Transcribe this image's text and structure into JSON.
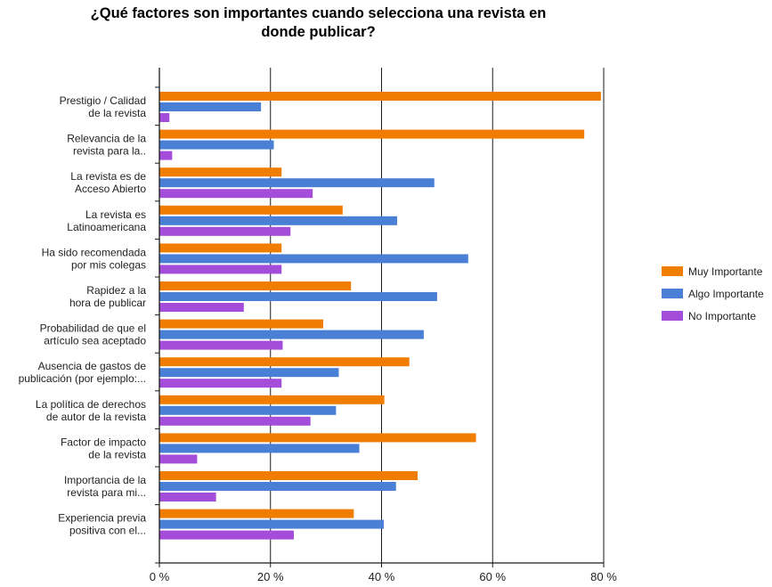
{
  "chart_data": {
    "type": "bar",
    "orientation": "horizontal",
    "title_lines": [
      "¿Qué factores son importantes cuando selecciona una revista en",
      "donde publicar?"
    ],
    "categories": [
      [
        "Prestigio / Calidad",
        "de la revista"
      ],
      [
        "Relevancia de la",
        "revista para la.."
      ],
      [
        "La revista es de",
        "Acceso Abierto"
      ],
      [
        "La revista es",
        "Latinoamericana"
      ],
      [
        "Ha sido recomendada",
        "por mis colegas"
      ],
      [
        "Rapidez a la",
        "hora de publicar"
      ],
      [
        "Probabilidad de que el",
        "artículo sea aceptado"
      ],
      [
        "Ausencia de gastos de",
        "publicación (por ejemplo:..."
      ],
      [
        "La política de derechos",
        "de autor de la revista"
      ],
      [
        "Factor de impacto",
        "de la revista"
      ],
      [
        "Importancia de la",
        "revista para mi..."
      ],
      [
        "Experiencia previa",
        "positiva con el..."
      ]
    ],
    "series": [
      {
        "name": "Muy Importante",
        "color": "#f07c00",
        "values": [
          79.5,
          76.5,
          22,
          33,
          22,
          34.5,
          29.5,
          45,
          40.5,
          57,
          46.5,
          35
        ]
      },
      {
        "name": "Algo Importante",
        "color": "#4a7fd6",
        "values": [
          18.3,
          20.6,
          49.5,
          42.8,
          55.6,
          50,
          47.6,
          32.3,
          31.8,
          36,
          42.6,
          40.4
        ]
      },
      {
        "name": "No Importante",
        "color": "#a54ddb",
        "values": [
          1.8,
          2.3,
          27.6,
          23.6,
          22,
          15.2,
          22.2,
          22,
          27.2,
          6.8,
          10.2,
          24.2
        ]
      }
    ],
    "xlim": [
      0,
      80
    ],
    "xticks": [
      "0 %",
      "20 %",
      "40 %",
      "60 %",
      "80 %"
    ],
    "grid": true,
    "legend_position": "right"
  }
}
